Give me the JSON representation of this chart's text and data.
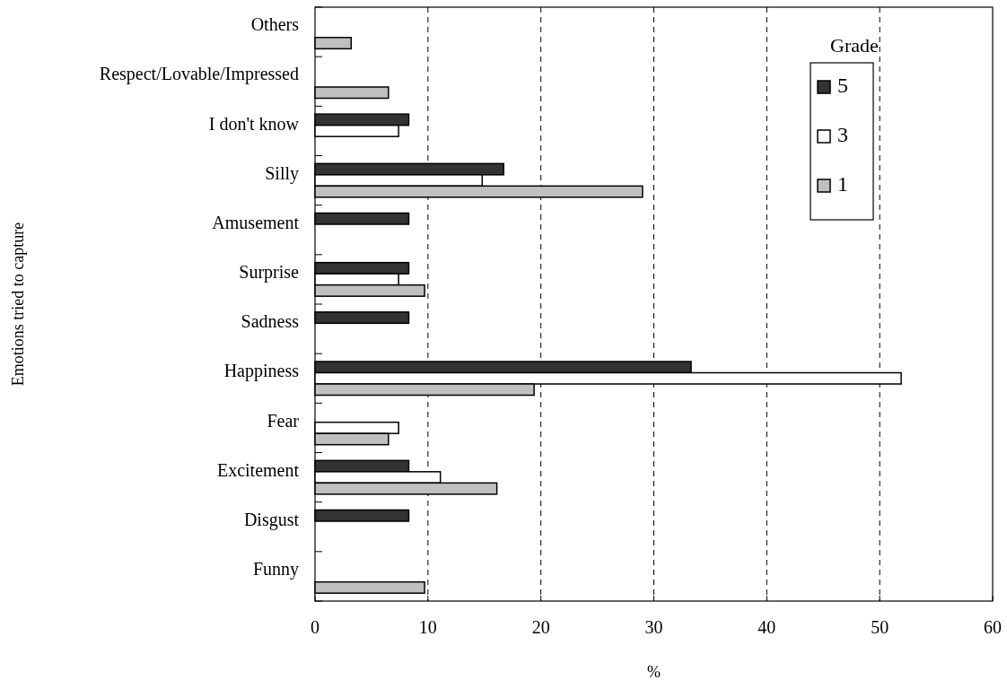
{
  "chart_data": {
    "type": "bar",
    "orientation": "horizontal",
    "xlabel": "%",
    "ylabel": "Emotions tried to capture",
    "legend_title": "Grade",
    "categories": [
      "Others",
      "Respect/Lovable/Impressed",
      "I don't know",
      "Silly",
      "Amusement",
      "Surprise",
      "Sadness",
      "Happiness",
      "Fear",
      "Excitement",
      "Disgust",
      "Funny"
    ],
    "series": [
      {
        "name": "5",
        "color": "#333333",
        "values": [
          null,
          null,
          8.3,
          16.7,
          8.3,
          8.3,
          8.3,
          33.3,
          null,
          8.3,
          8.3,
          null
        ]
      },
      {
        "name": "3",
        "color": "#ffffff",
        "values": [
          null,
          null,
          7.4,
          14.8,
          null,
          7.4,
          null,
          51.9,
          7.4,
          11.1,
          null,
          null
        ]
      },
      {
        "name": "1",
        "color": "#c0c0c0",
        "values": [
          3.2,
          6.5,
          null,
          29.0,
          null,
          9.7,
          null,
          19.4,
          6.5,
          16.1,
          null,
          9.7
        ]
      }
    ],
    "xlim": [
      0,
      60
    ],
    "xticks": [
      0,
      10,
      20,
      30,
      40,
      50,
      60
    ],
    "grid": "x",
    "legend": "top right"
  }
}
